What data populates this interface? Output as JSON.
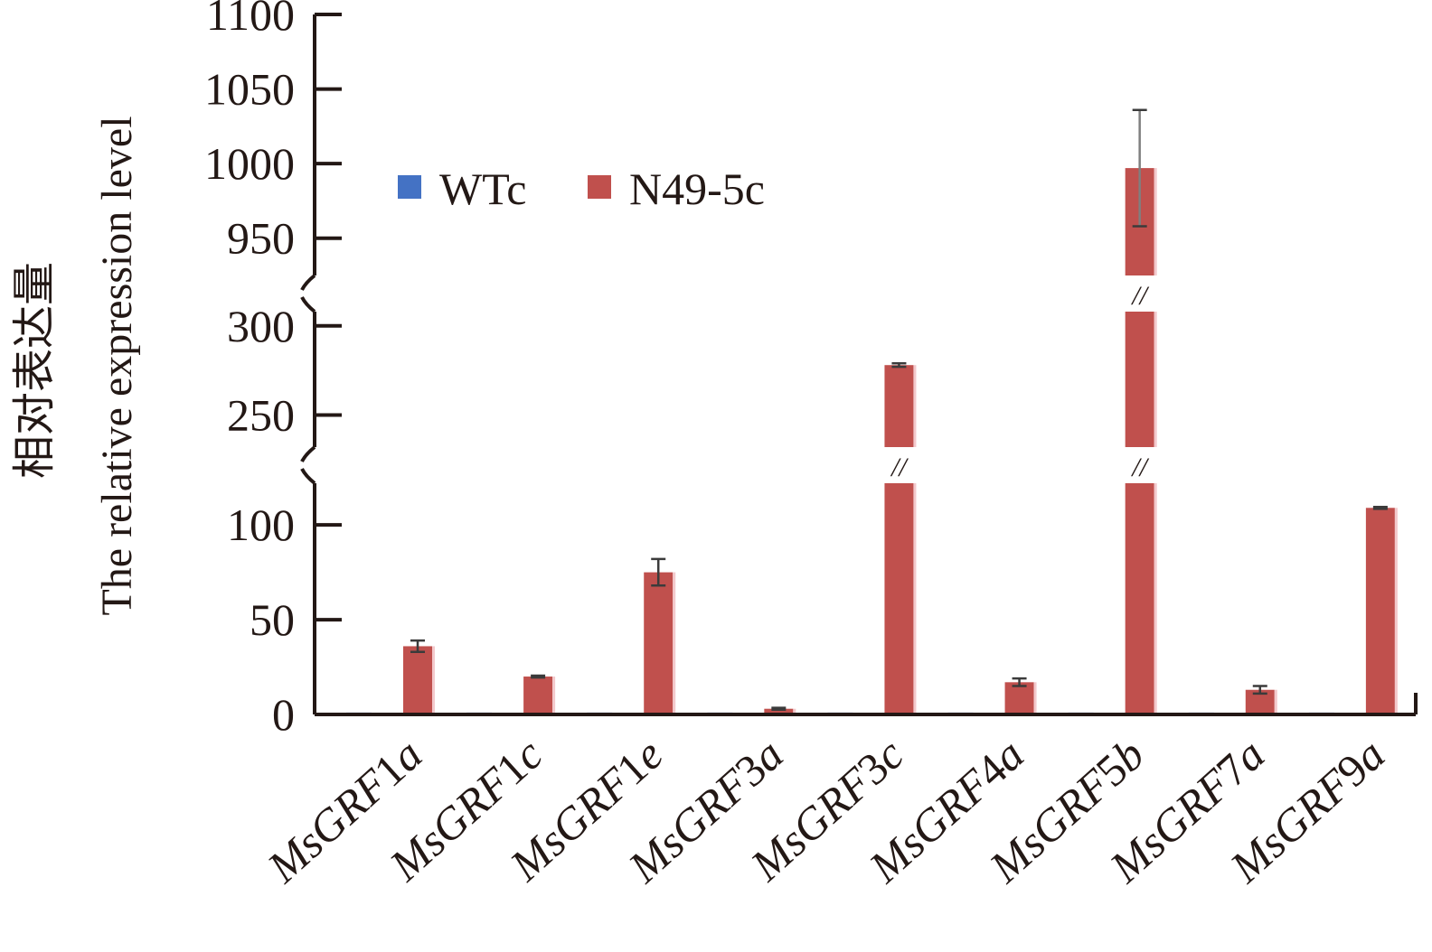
{
  "chart_data": {
    "type": "bar",
    "ylabel_cn": "相对表达量",
    "ylabel": "The relative expression level",
    "categories": [
      {
        "prefix": "MsGRF",
        "num": "1",
        "suffix": "a"
      },
      {
        "prefix": "MsGRF",
        "num": "1",
        "suffix": "c"
      },
      {
        "prefix": "MsGRF",
        "num": "1",
        "suffix": "e"
      },
      {
        "prefix": "MsGRF",
        "num": "3",
        "suffix": "a"
      },
      {
        "prefix": "MsGRF",
        "num": "3",
        "suffix": "c"
      },
      {
        "prefix": "MsGRF",
        "num": "4",
        "suffix": "a"
      },
      {
        "prefix": "MsGRF",
        "num": "5",
        "suffix": "b"
      },
      {
        "prefix": "MsGRF",
        "num": "7",
        "suffix": "a"
      },
      {
        "prefix": "MsGRF",
        "num": "9",
        "suffix": "a"
      }
    ],
    "series": [
      {
        "name": "WTc",
        "color": "#4472c4",
        "values": [
          1,
          1,
          1,
          1,
          1,
          1,
          1,
          1,
          1
        ],
        "errors": [
          0,
          0,
          0,
          0,
          0,
          0,
          0,
          0,
          0
        ]
      },
      {
        "name": "N49-5c",
        "color": "#c0504d",
        "values": [
          36,
          20,
          75,
          3,
          278,
          17,
          997,
          13,
          109
        ],
        "errors": [
          3,
          0.5,
          7,
          0.5,
          1,
          2,
          39,
          2,
          0.5
        ]
      }
    ],
    "y_segments": [
      {
        "range": [
          0,
          122
        ],
        "ticks": [
          0,
          50,
          100
        ]
      },
      {
        "range": [
          232,
          308
        ],
        "ticks": [
          250,
          300
        ]
      },
      {
        "range": [
          925,
          1100
        ],
        "ticks": [
          950,
          1000,
          1050,
          1100
        ]
      }
    ],
    "broken_axis": true,
    "break_mark": "//",
    "legend": {
      "position": "top-left",
      "entries": [
        "WTc",
        "N49-5c"
      ]
    }
  }
}
